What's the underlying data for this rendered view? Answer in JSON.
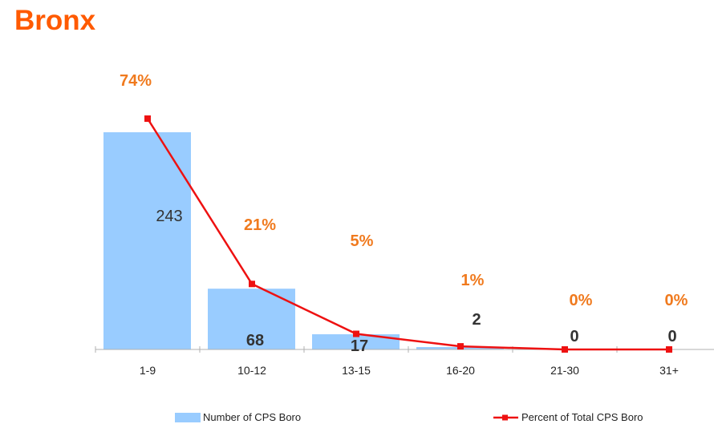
{
  "colors": {
    "title": "#ff5a00",
    "bar": "#99ccff",
    "line": "#ee1111",
    "pct_label": "#f07a1e",
    "bar_label": "#333333",
    "axis": "#b0b0b0"
  },
  "chart_data": {
    "type": "bar",
    "title": "Bronx",
    "categories": [
      "1-9",
      "10-12",
      "13-15",
      "16-20",
      "21-30",
      "31+"
    ],
    "series": [
      {
        "name": "Number of CPS Boro",
        "kind": "bar",
        "values": [
          243,
          68,
          17,
          2,
          0,
          0
        ]
      },
      {
        "name": "Percent of Total CPS Boro",
        "kind": "line",
        "values": [
          74,
          21,
          5,
          1,
          0,
          0
        ]
      }
    ],
    "bar_labels": [
      "243",
      "68",
      "17",
      "2",
      "0",
      "0"
    ],
    "line_labels": [
      "74%",
      "21%",
      "5%",
      "1%",
      "0%",
      "0%"
    ],
    "xlabel": "",
    "ylabel": "",
    "grid": false,
    "legend": "bottom"
  }
}
